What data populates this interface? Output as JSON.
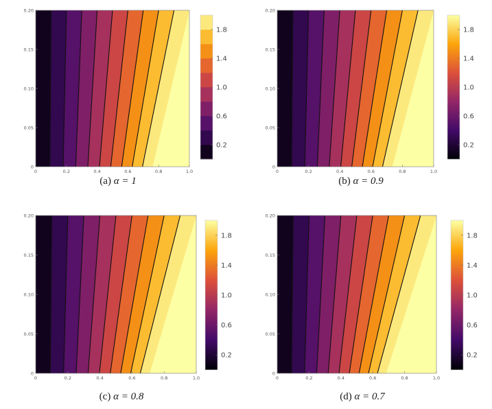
{
  "chart_data": [
    {
      "type": "contour",
      "caption_prefix": "(a)",
      "alpha_label": "α = 1",
      "alpha": 1,
      "colorbar_style": "discrete",
      "contour_levels": [
        0.2,
        0.4,
        0.6,
        0.8,
        1.0,
        1.2,
        1.4,
        1.6,
        1.8
      ],
      "xlim": [
        0,
        1
      ],
      "ylim": [
        0,
        0.2
      ],
      "x_ticks": [
        "0",
        "0.2",
        "0.4",
        "0.6",
        "0.8",
        "1.0"
      ],
      "y_ticks": [
        "0",
        "0.05",
        "0.10",
        "0.15",
        "0.20"
      ],
      "colorbar_ticks": [
        "0.2",
        "0.6",
        "1.0",
        "1.4",
        "1.8"
      ]
    },
    {
      "type": "contour",
      "caption_prefix": "(b)",
      "alpha_label": "α = 0.9",
      "alpha": 0.9,
      "colorbar_style": "continuous",
      "contour_levels": [
        0.2,
        0.4,
        0.6,
        0.8,
        1.0,
        1.2,
        1.4,
        1.6,
        1.8
      ],
      "xlim": [
        0,
        1
      ],
      "ylim": [
        0,
        0.2
      ],
      "x_ticks": [
        "0",
        "0.2",
        "0.4",
        "0.6",
        "0.8",
        "1.0"
      ],
      "y_ticks": [
        "0",
        "0.05",
        "0.10",
        "0.15",
        "0.20"
      ],
      "colorbar_ticks": [
        "0.2",
        "0.6",
        "1.0",
        "1.4",
        "1.8"
      ]
    },
    {
      "type": "contour",
      "caption_prefix": "(c)",
      "alpha_label": "α = 0.8",
      "alpha": 0.8,
      "colorbar_style": "continuous",
      "contour_levels": [
        0.2,
        0.4,
        0.6,
        0.8,
        1.0,
        1.2,
        1.4,
        1.6,
        1.8
      ],
      "xlim": [
        0,
        1
      ],
      "ylim": [
        0,
        0.2
      ],
      "x_ticks": [
        "0",
        "0.2",
        "0.4",
        "0.6",
        "0.8",
        "1.0"
      ],
      "y_ticks": [
        "0",
        "0.05",
        "0.10",
        "0.15",
        "0.20"
      ],
      "colorbar_ticks": [
        "0.2",
        "0.6",
        "1.0",
        "1.4",
        "1.8"
      ]
    },
    {
      "type": "contour",
      "caption_prefix": "(d)",
      "alpha_label": "α = 0.7",
      "alpha": 0.7,
      "colorbar_style": "continuous",
      "contour_levels": [
        0.2,
        0.4,
        0.6,
        0.8,
        1.0,
        1.2,
        1.4,
        1.6,
        1.8
      ],
      "xlim": [
        0,
        1
      ],
      "ylim": [
        0,
        0.2
      ],
      "x_ticks": [
        "0",
        "0.2",
        "0.4",
        "0.6",
        "0.8",
        "1.0"
      ],
      "y_ticks": [
        "0",
        "0.05",
        "0.10",
        "0.15",
        "0.20"
      ],
      "colorbar_ticks": [
        "0.2",
        "0.6",
        "1.0",
        "1.4",
        "1.8"
      ]
    }
  ],
  "colormap": [
    "#000004",
    "#420a68",
    "#932667",
    "#dd513a",
    "#fca50a",
    "#fcffa4"
  ]
}
